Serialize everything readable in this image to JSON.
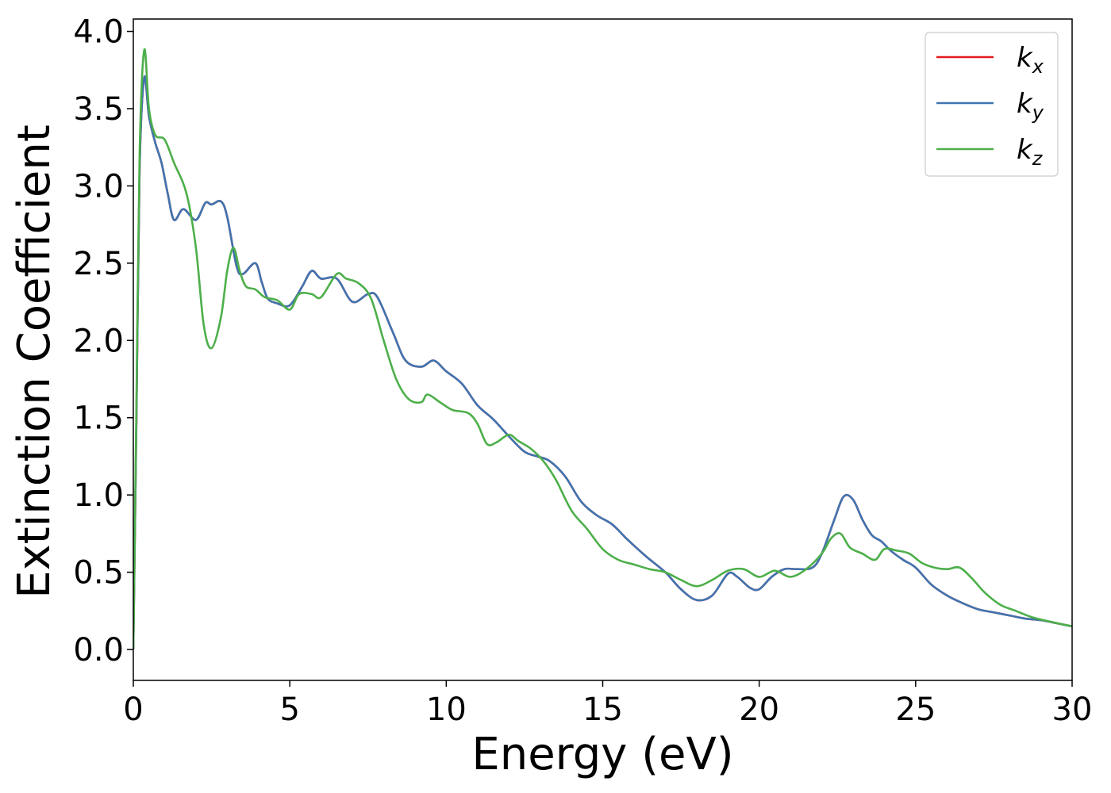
{
  "chart_data": {
    "type": "line",
    "title": "",
    "xlabel": "Energy (eV)",
    "ylabel": "Extinction Coefficient",
    "xlim": [
      0,
      30
    ],
    "ylim": [
      -0.2,
      4.08
    ],
    "xticks": [
      0,
      5,
      10,
      15,
      20,
      25,
      30
    ],
    "xtick_labels": [
      "0",
      "5",
      "10",
      "15",
      "20",
      "25",
      "30"
    ],
    "yticks": [
      0.0,
      0.5,
      1.0,
      1.5,
      2.0,
      2.5,
      3.0,
      3.5,
      4.0
    ],
    "ytick_labels": [
      "0.0",
      "0.5",
      "1.0",
      "1.5",
      "2.0",
      "2.5",
      "3.0",
      "3.5",
      "4.0"
    ],
    "grid": false,
    "legend_position": "top-right",
    "series": [
      {
        "name": "k",
        "subscript": "x",
        "color": "#e41a1c",
        "x": [
          0,
          0.1,
          0.2,
          0.35,
          0.5,
          0.7,
          0.9,
          1.1,
          1.3,
          1.6,
          2.0,
          2.3,
          2.5,
          2.8,
          3.0,
          3.3,
          3.5,
          3.9,
          4.1,
          4.3,
          4.6,
          4.9,
          5.1,
          5.4,
          5.7,
          6.0,
          6.5,
          7.0,
          7.5,
          7.8,
          8.3,
          8.7,
          9.2,
          9.6,
          10.0,
          10.5,
          11.0,
          11.5,
          12.0,
          12.5,
          12.9,
          13.3,
          13.8,
          14.3,
          14.8,
          15.3,
          15.8,
          16.4,
          17.0,
          17.5,
          18.0,
          18.5,
          19.0,
          19.3,
          19.7,
          20.0,
          20.4,
          20.8,
          21.2,
          21.7,
          22.0,
          22.4,
          22.7,
          23.0,
          23.3,
          23.6,
          23.9,
          24.2,
          24.6,
          25.0,
          25.5,
          26.0,
          26.5,
          27.0,
          27.5,
          28.0,
          28.5,
          29.0,
          29.5,
          30.0
        ],
        "y": [
          0.0,
          1.5,
          3.1,
          3.7,
          3.45,
          3.28,
          3.15,
          2.95,
          2.78,
          2.85,
          2.78,
          2.89,
          2.88,
          2.9,
          2.8,
          2.48,
          2.43,
          2.5,
          2.38,
          2.27,
          2.24,
          2.22,
          2.25,
          2.35,
          2.45,
          2.4,
          2.4,
          2.25,
          2.3,
          2.28,
          2.05,
          1.87,
          1.83,
          1.87,
          1.8,
          1.72,
          1.58,
          1.49,
          1.38,
          1.28,
          1.25,
          1.22,
          1.12,
          0.96,
          0.87,
          0.81,
          0.71,
          0.6,
          0.5,
          0.39,
          0.32,
          0.35,
          0.49,
          0.47,
          0.4,
          0.39,
          0.47,
          0.52,
          0.52,
          0.53,
          0.62,
          0.84,
          0.99,
          0.97,
          0.84,
          0.74,
          0.7,
          0.64,
          0.58,
          0.53,
          0.42,
          0.35,
          0.3,
          0.26,
          0.24,
          0.22,
          0.2,
          0.19,
          0.17,
          0.15
        ]
      },
      {
        "name": "k",
        "subscript": "y",
        "color": "#3f74b0",
        "x": [
          0,
          0.1,
          0.2,
          0.35,
          0.5,
          0.7,
          0.9,
          1.1,
          1.3,
          1.6,
          2.0,
          2.3,
          2.5,
          2.8,
          3.0,
          3.3,
          3.5,
          3.9,
          4.1,
          4.3,
          4.6,
          4.9,
          5.1,
          5.4,
          5.7,
          6.0,
          6.5,
          7.0,
          7.5,
          7.8,
          8.3,
          8.7,
          9.2,
          9.6,
          10.0,
          10.5,
          11.0,
          11.5,
          12.0,
          12.5,
          12.9,
          13.3,
          13.8,
          14.3,
          14.8,
          15.3,
          15.8,
          16.4,
          17.0,
          17.5,
          18.0,
          18.5,
          19.0,
          19.3,
          19.7,
          20.0,
          20.4,
          20.8,
          21.2,
          21.7,
          22.0,
          22.4,
          22.7,
          23.0,
          23.3,
          23.6,
          23.9,
          24.2,
          24.6,
          25.0,
          25.5,
          26.0,
          26.5,
          27.0,
          27.5,
          28.0,
          28.5,
          29.0,
          29.5,
          30.0
        ],
        "y": [
          0.0,
          1.5,
          3.1,
          3.7,
          3.45,
          3.28,
          3.15,
          2.95,
          2.78,
          2.85,
          2.78,
          2.89,
          2.88,
          2.9,
          2.8,
          2.48,
          2.43,
          2.5,
          2.38,
          2.27,
          2.24,
          2.22,
          2.25,
          2.35,
          2.45,
          2.4,
          2.4,
          2.25,
          2.3,
          2.28,
          2.05,
          1.87,
          1.83,
          1.87,
          1.8,
          1.72,
          1.58,
          1.49,
          1.38,
          1.28,
          1.25,
          1.22,
          1.12,
          0.96,
          0.87,
          0.81,
          0.71,
          0.6,
          0.5,
          0.39,
          0.32,
          0.35,
          0.49,
          0.47,
          0.4,
          0.39,
          0.47,
          0.52,
          0.52,
          0.53,
          0.62,
          0.84,
          0.99,
          0.97,
          0.84,
          0.74,
          0.7,
          0.64,
          0.58,
          0.53,
          0.42,
          0.35,
          0.3,
          0.26,
          0.24,
          0.22,
          0.2,
          0.19,
          0.17,
          0.15
        ]
      },
      {
        "name": "k",
        "subscript": "z",
        "color": "#4daf4a",
        "x": [
          0,
          0.1,
          0.2,
          0.35,
          0.5,
          0.7,
          1.0,
          1.3,
          1.7,
          2.0,
          2.25,
          2.5,
          2.8,
          3.0,
          3.2,
          3.4,
          3.6,
          3.9,
          4.2,
          4.6,
          5.0,
          5.3,
          5.7,
          6.0,
          6.5,
          6.8,
          7.2,
          7.6,
          8.0,
          8.4,
          8.8,
          9.2,
          9.4,
          9.8,
          10.2,
          10.7,
          11.0,
          11.3,
          11.6,
          12.0,
          12.3,
          12.7,
          13.1,
          13.5,
          14.0,
          14.5,
          15.0,
          15.5,
          16.0,
          16.5,
          17.0,
          17.5,
          18.0,
          18.5,
          19.0,
          19.5,
          20.0,
          20.5,
          21.0,
          21.5,
          22.0,
          22.3,
          22.6,
          22.9,
          23.3,
          23.7,
          24.0,
          24.4,
          24.8,
          25.2,
          25.6,
          26.0,
          26.4,
          26.8,
          27.2,
          27.7,
          28.2,
          28.7,
          29.3,
          30.0
        ],
        "y": [
          0.0,
          1.6,
          3.2,
          3.88,
          3.5,
          3.33,
          3.3,
          3.15,
          2.95,
          2.6,
          2.1,
          1.95,
          2.15,
          2.45,
          2.6,
          2.45,
          2.35,
          2.33,
          2.28,
          2.26,
          2.2,
          2.3,
          2.3,
          2.28,
          2.43,
          2.4,
          2.37,
          2.27,
          2.0,
          1.75,
          1.62,
          1.6,
          1.65,
          1.6,
          1.55,
          1.53,
          1.46,
          1.33,
          1.34,
          1.39,
          1.35,
          1.3,
          1.22,
          1.1,
          0.9,
          0.78,
          0.65,
          0.58,
          0.55,
          0.52,
          0.5,
          0.45,
          0.41,
          0.45,
          0.51,
          0.52,
          0.47,
          0.51,
          0.47,
          0.52,
          0.62,
          0.72,
          0.75,
          0.66,
          0.62,
          0.58,
          0.65,
          0.64,
          0.62,
          0.56,
          0.53,
          0.52,
          0.53,
          0.46,
          0.37,
          0.29,
          0.25,
          0.21,
          0.18,
          0.15
        ]
      }
    ]
  }
}
